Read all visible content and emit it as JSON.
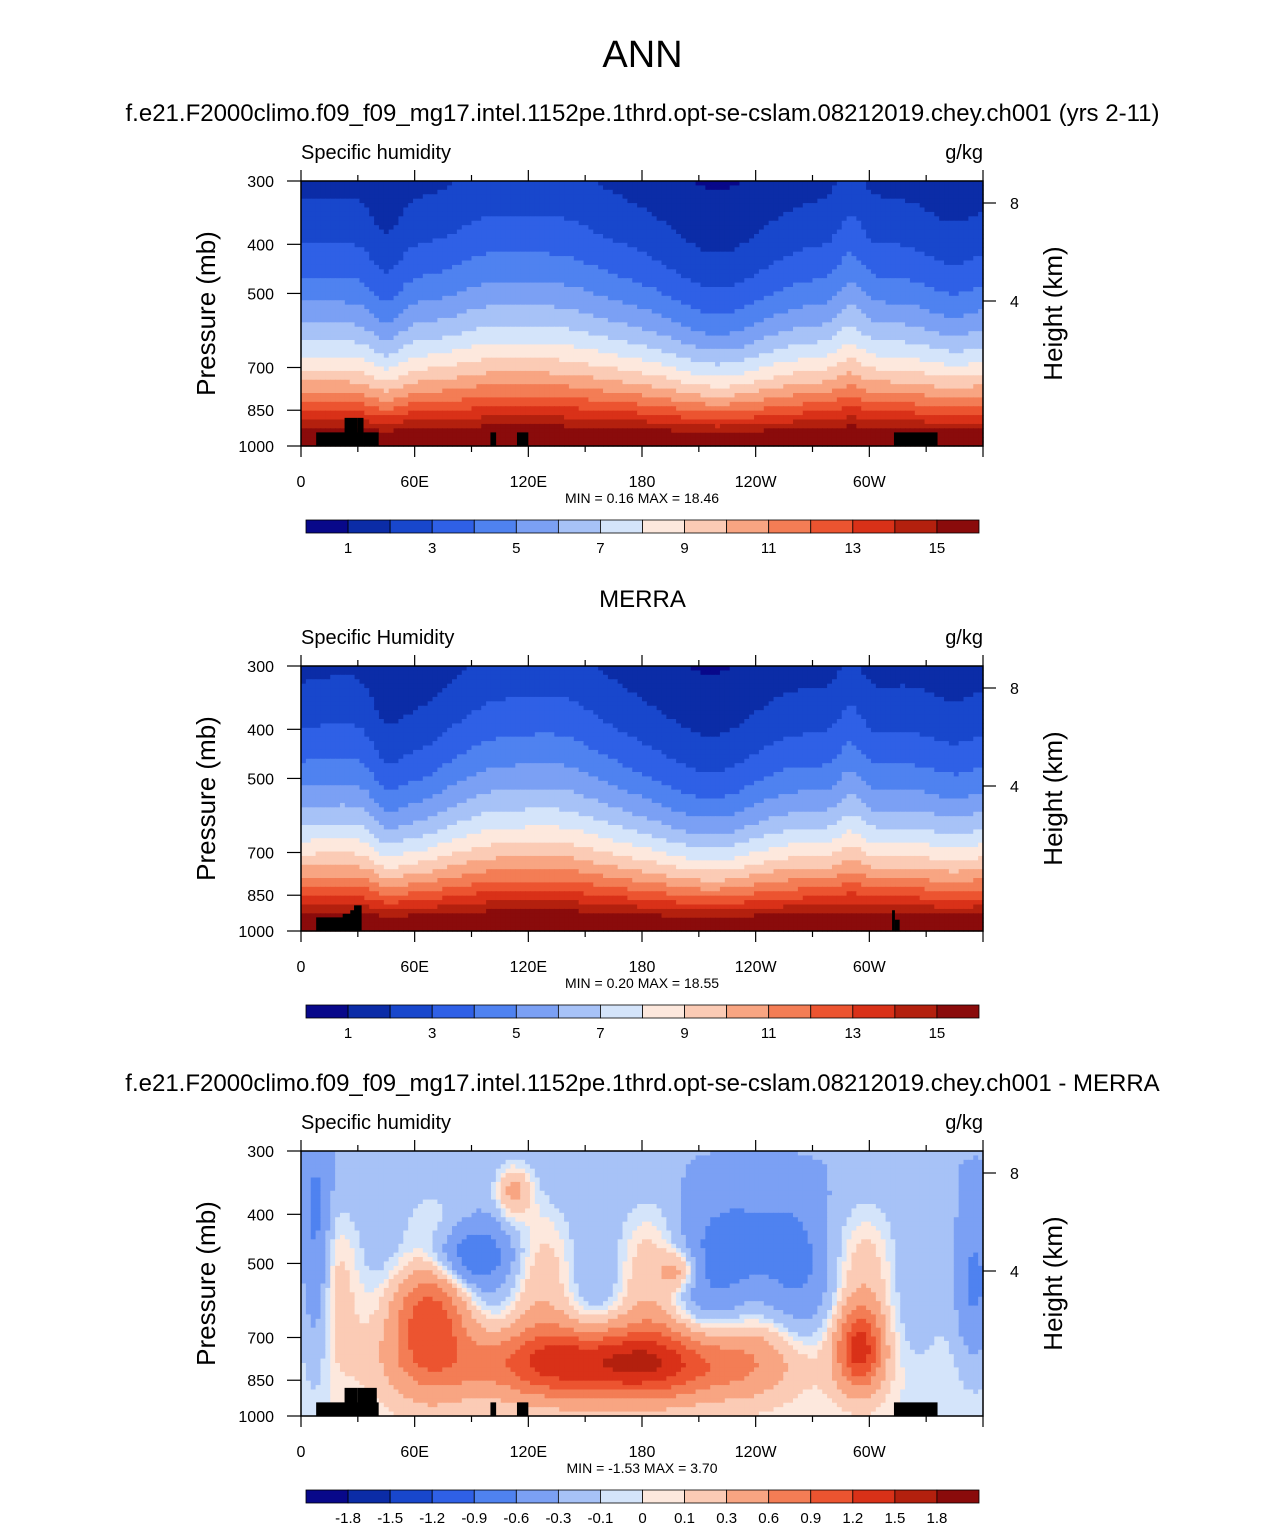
{
  "page": {
    "title": "ANN"
  },
  "chart_data": [
    {
      "type": "heatmap",
      "title": "f.e21.F2000climo.f09_f09_mg17.intel.1152pe.1thrd.opt-se-cslam.08212019.chey.ch001 (yrs 2-11)",
      "left_label": "Specific humidity",
      "right_label": "g/kg",
      "ylabel": "Pressure (mb)",
      "ylabel_right": "Height (km)",
      "x_ticks": [
        "0",
        "60E",
        "120E",
        "180",
        "120W",
        "60W"
      ],
      "y_ticks": [
        "300",
        "400",
        "500",
        "700",
        "850",
        "1000"
      ],
      "height_ticks": [
        "8",
        "4"
      ],
      "stats": "MIN =   0.16  MAX =  18.46",
      "colorbar_labels": [
        "1",
        "3",
        "5",
        "7",
        "9",
        "11",
        "13",
        "15"
      ],
      "colors": [
        "#08088a",
        "#0b2ca7",
        "#1847cc",
        "#2f60e6",
        "#4f82f0",
        "#7ba0f4",
        "#a7c2f7",
        "#d4e4fa",
        "#fde8dd",
        "#fbcbb5",
        "#f8a582",
        "#f37d55",
        "#ec5430",
        "#d93118",
        "#b3200e",
        "#8a0b0b"
      ],
      "land": "#000000"
    },
    {
      "type": "heatmap",
      "title": "MERRA",
      "left_label": "Specific Humidity",
      "right_label": "g/kg",
      "ylabel": "Pressure (mb)",
      "ylabel_right": "Height (km)",
      "x_ticks": [
        "0",
        "60E",
        "120E",
        "180",
        "120W",
        "60W"
      ],
      "y_ticks": [
        "300",
        "400",
        "500",
        "700",
        "850",
        "1000"
      ],
      "height_ticks": [
        "8",
        "4"
      ],
      "stats": "MIN =   0.20  MAX =  18.55",
      "colorbar_labels": [
        "1",
        "3",
        "5",
        "7",
        "9",
        "11",
        "13",
        "15"
      ],
      "colors": [
        "#08088a",
        "#0b2ca7",
        "#1847cc",
        "#2f60e6",
        "#4f82f0",
        "#7ba0f4",
        "#a7c2f7",
        "#d4e4fa",
        "#fde8dd",
        "#fbcbb5",
        "#f8a582",
        "#f37d55",
        "#ec5430",
        "#d93118",
        "#b3200e",
        "#8a0b0b"
      ],
      "land": "#000000"
    },
    {
      "type": "heatmap",
      "title": "f.e21.F2000climo.f09_f09_mg17.intel.1152pe.1thrd.opt-se-cslam.08212019.chey.ch001 - MERRA",
      "left_label": "Specific humidity",
      "right_label": "g/kg",
      "ylabel": "Pressure (mb)",
      "ylabel_right": "Height (km)",
      "x_ticks": [
        "0",
        "60E",
        "120E",
        "180",
        "120W",
        "60W"
      ],
      "y_ticks": [
        "300",
        "400",
        "500",
        "700",
        "850",
        "1000"
      ],
      "height_ticks": [
        "8",
        "4"
      ],
      "stats": "MIN =  -1.53  MAX =   3.70",
      "colorbar_labels": [
        "-1.8",
        "-1.5",
        "-1.2",
        "-0.9",
        "-0.6",
        "-0.3",
        "-0.1",
        "0",
        "0.1",
        "0.3",
        "0.6",
        "0.9",
        "1.2",
        "1.5",
        "1.8"
      ],
      "colors": [
        "#08088a",
        "#0b2ca7",
        "#1847cc",
        "#2f60e6",
        "#4f82f0",
        "#7ba0f4",
        "#a7c2f7",
        "#d4e4fa",
        "#fde8dd",
        "#fbcbb5",
        "#f8a582",
        "#f37d55",
        "#ec5430",
        "#d93118",
        "#b3200e",
        "#8a0b0b"
      ],
      "land": "#000000"
    }
  ]
}
